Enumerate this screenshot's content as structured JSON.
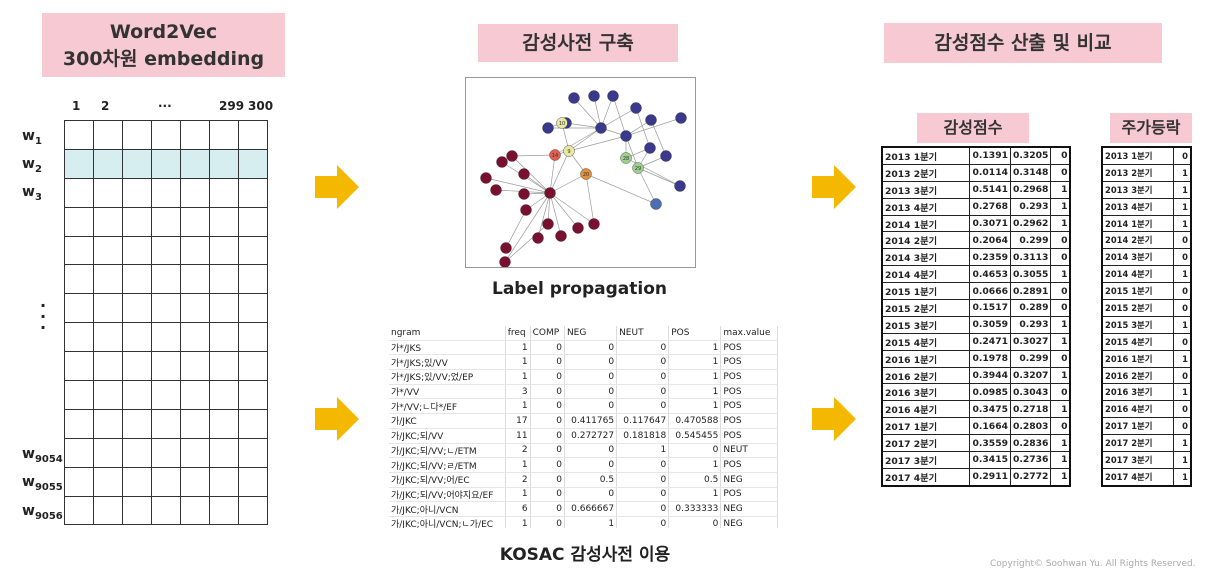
{
  "titles": {
    "w2v_line1": "Word2Vec",
    "w2v_line2": "300차원 embedding",
    "dict": "감성사전 구축",
    "score": "감성점수 산출 및 비교",
    "score_table": "감성점수",
    "stock_table": "주가등락"
  },
  "embedding": {
    "columns": [
      "1",
      "2",
      "···",
      "299",
      "300"
    ],
    "rows_top": [
      {
        "w": "w",
        "sub": "1"
      },
      {
        "w": "w",
        "sub": "2"
      },
      {
        "w": "w",
        "sub": "3"
      }
    ],
    "rows_bottom": [
      {
        "w": "w",
        "sub": "9054"
      },
      {
        "w": "w",
        "sub": "9055"
      },
      {
        "w": "w",
        "sub": "9056"
      }
    ],
    "vertical_dots": "·\n·\n·"
  },
  "graph_labels": [
    "10",
    "9",
    "14",
    "20",
    "28",
    "29"
  ],
  "captions": {
    "label_propagation": "Label propagation",
    "kosac": "KOSAC 감성사전 이용"
  },
  "kosac": {
    "headers": [
      "ngram",
      "freq",
      "COMP",
      "NEG",
      "NEUT",
      "POS",
      "max.value"
    ],
    "rows": [
      [
        "가*/JKS",
        "1",
        "0",
        "0",
        "0",
        "1",
        "POS"
      ],
      [
        "가*/JKS;있/VV",
        "1",
        "0",
        "0",
        "0",
        "1",
        "POS"
      ],
      [
        "가*/JKS;있/VV;었/EP",
        "1",
        "0",
        "0",
        "0",
        "1",
        "POS"
      ],
      [
        "가*/VV",
        "3",
        "0",
        "0",
        "0",
        "1",
        "POS"
      ],
      [
        "가*/VV;ㄴ다*/EF",
        "1",
        "0",
        "0",
        "0",
        "1",
        "POS"
      ],
      [
        "가/JKC",
        "17",
        "0",
        "0.411765",
        "0.117647",
        "0.470588",
        "POS"
      ],
      [
        "가/JKC;되/VV",
        "11",
        "0",
        "0.272727",
        "0.181818",
        "0.545455",
        "POS"
      ],
      [
        "가/JKC;되/VV;ㄴ/ETM",
        "2",
        "0",
        "0",
        "1",
        "0",
        "NEUT"
      ],
      [
        "가/JKC;되/VV;ㄹ/ETM",
        "1",
        "0",
        "0",
        "0",
        "1",
        "POS"
      ],
      [
        "가/JKC;되/VV;어/EC",
        "2",
        "0",
        "0.5",
        "0",
        "0.5",
        "NEG"
      ],
      [
        "가/JKC;되/VV;어야지요/EF",
        "1",
        "0",
        "0",
        "0",
        "1",
        "POS"
      ],
      [
        "가/JKC;아니/VCN",
        "6",
        "0",
        "0.666667",
        "0",
        "0.333333",
        "NEG"
      ],
      [
        "가/JKC;아니/VCN;ㄴ가/EC",
        "1",
        "0",
        "1",
        "0",
        "0",
        "NEG"
      ]
    ]
  },
  "score_rows": [
    [
      "2013 1분기",
      "0.1391",
      "0.3205",
      "0"
    ],
    [
      "2013 2분기",
      "0.0114",
      "0.3148",
      "0"
    ],
    [
      "2013 3분기",
      "0.5141",
      "0.2968",
      "1"
    ],
    [
      "2013 4분기",
      "0.2768",
      "0.293",
      "1"
    ],
    [
      "2014 1분기",
      "0.3071",
      "0.2962",
      "1"
    ],
    [
      "2014 2분기",
      "0.2064",
      "0.299",
      "0"
    ],
    [
      "2014 3분기",
      "0.2359",
      "0.3113",
      "0"
    ],
    [
      "2014 4분기",
      "0.4653",
      "0.3055",
      "1"
    ],
    [
      "2015 1분기",
      "0.0666",
      "0.2891",
      "0"
    ],
    [
      "2015 2분기",
      "0.1517",
      "0.289",
      "0"
    ],
    [
      "2015 3분기",
      "0.3059",
      "0.293",
      "1"
    ],
    [
      "2015 4분기",
      "0.2471",
      "0.3027",
      "1"
    ],
    [
      "2016 1분기",
      "0.1978",
      "0.299",
      "0"
    ],
    [
      "2016 2분기",
      "0.3944",
      "0.3207",
      "1"
    ],
    [
      "2016 3분기",
      "0.0985",
      "0.3043",
      "0"
    ],
    [
      "2016 4분기",
      "0.3475",
      "0.2718",
      "1"
    ],
    [
      "2017 1분기",
      "0.1664",
      "0.2803",
      "0"
    ],
    [
      "2017 2분기",
      "0.3559",
      "0.2836",
      "1"
    ],
    [
      "2017 3분기",
      "0.3415",
      "0.2736",
      "1"
    ],
    [
      "2017 4분기",
      "0.2911",
      "0.2772",
      "1"
    ]
  ],
  "stock_rows": [
    [
      "2013 1분기",
      "0"
    ],
    [
      "2013 2분기",
      "1"
    ],
    [
      "2013 3분기",
      "1"
    ],
    [
      "2013 4분기",
      "1"
    ],
    [
      "2014 1분기",
      "1"
    ],
    [
      "2014 2분기",
      "0"
    ],
    [
      "2014 3분기",
      "0"
    ],
    [
      "2014 4분기",
      "1"
    ],
    [
      "2015 1분기",
      "0"
    ],
    [
      "2015 2분기",
      "0"
    ],
    [
      "2015 3분기",
      "1"
    ],
    [
      "2015 4분기",
      "0"
    ],
    [
      "2016 1분기",
      "1"
    ],
    [
      "2016 2분기",
      "0"
    ],
    [
      "2016 3분기",
      "1"
    ],
    [
      "2016 4분기",
      "0"
    ],
    [
      "2017 1분기",
      "0"
    ],
    [
      "2017 2분기",
      "1"
    ],
    [
      "2017 3분기",
      "1"
    ],
    [
      "2017 4분기",
      "1"
    ]
  ],
  "colors": {
    "title_bg": "#f7c9d2",
    "highlight_row": "#d6eef0",
    "arrow": "#f5b800"
  },
  "copyright": "Copyright© Soohwan Yu. All Rights Reserved."
}
